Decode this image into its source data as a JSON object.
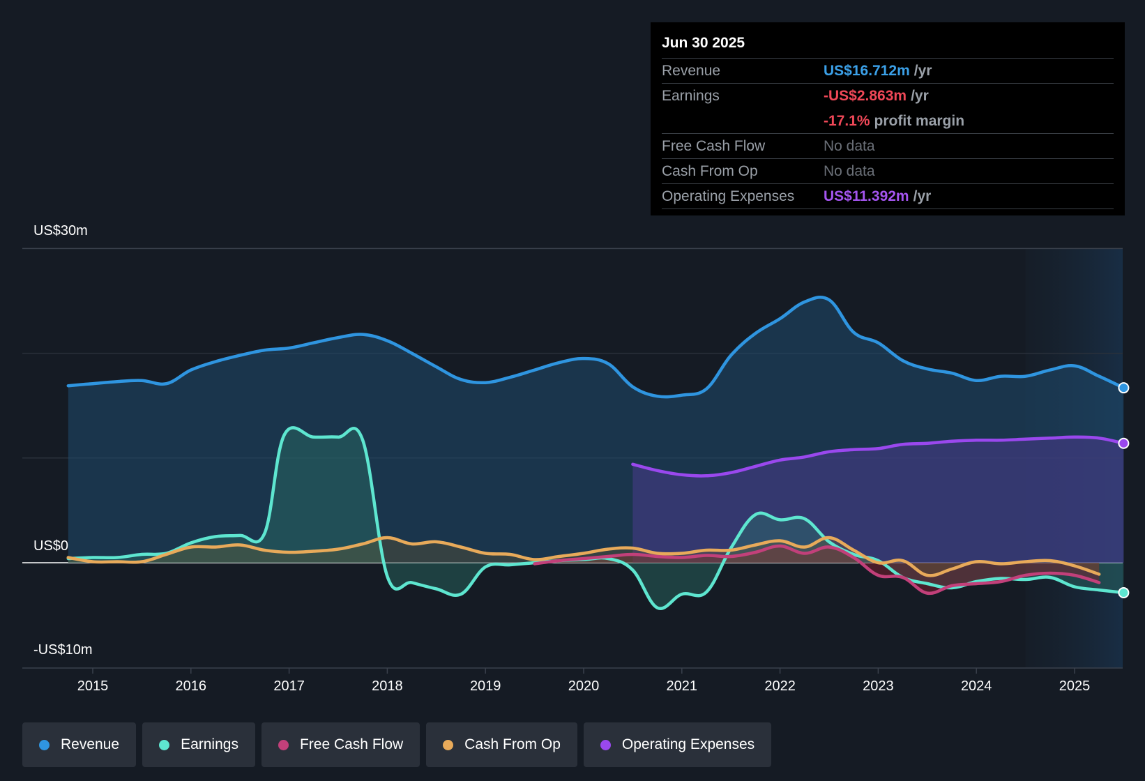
{
  "tooltip": {
    "date": "Jun 30 2025",
    "rows": [
      {
        "label": "Revenue",
        "value": "US$16.712m",
        "unit": "/yr",
        "color": "#3ba0e8"
      },
      {
        "label": "Earnings",
        "value": "-US$2.863m",
        "unit": "/yr",
        "color": "#f04858"
      },
      {
        "label": "",
        "value": "-17.1%",
        "unit": "profit margin",
        "color": "#f04858"
      },
      {
        "label": "Free Cash Flow",
        "value": "No data",
        "unit": "",
        "color": "#6b7078"
      },
      {
        "label": "Cash From Op",
        "value": "No data",
        "unit": "",
        "color": "#6b7078"
      },
      {
        "label": "Operating Expenses",
        "value": "US$11.392m",
        "unit": "/yr",
        "color": "#a555f0"
      }
    ]
  },
  "legend": [
    {
      "label": "Revenue",
      "color": "#2f95e0"
    },
    {
      "label": "Earnings",
      "color": "#5ee6d0"
    },
    {
      "label": "Free Cash Flow",
      "color": "#c2407a"
    },
    {
      "label": "Cash From Op",
      "color": "#e8aa5a"
    },
    {
      "label": "Operating Expenses",
      "color": "#9a48ee"
    }
  ],
  "chart_data": {
    "type": "area",
    "y_labels": {
      "top": "US$30m",
      "zero": "US$0",
      "bottom": "-US$10m"
    },
    "ylim": [
      -10,
      30
    ],
    "xlim": [
      2014.7,
      2025.5
    ],
    "x_ticks": [
      2015,
      2016,
      2017,
      2018,
      2019,
      2020,
      2021,
      2022,
      2023,
      2024,
      2025
    ],
    "forecast_start": 2024.5,
    "series": [
      {
        "name": "Revenue",
        "color": "#2f95e0",
        "fill": true,
        "end_marker": true,
        "points": [
          [
            2014.75,
            16.9
          ],
          [
            2015.0,
            17.1
          ],
          [
            2015.25,
            17.3
          ],
          [
            2015.5,
            17.4
          ],
          [
            2015.75,
            17.1
          ],
          [
            2016.0,
            18.4
          ],
          [
            2016.25,
            19.2
          ],
          [
            2016.5,
            19.8
          ],
          [
            2016.75,
            20.3
          ],
          [
            2017.0,
            20.5
          ],
          [
            2017.25,
            21.0
          ],
          [
            2017.5,
            21.5
          ],
          [
            2017.75,
            21.8
          ],
          [
            2018.0,
            21.2
          ],
          [
            2018.25,
            20.0
          ],
          [
            2018.5,
            18.7
          ],
          [
            2018.75,
            17.5
          ],
          [
            2019.0,
            17.2
          ],
          [
            2019.25,
            17.7
          ],
          [
            2019.5,
            18.4
          ],
          [
            2019.75,
            19.1
          ],
          [
            2020.0,
            19.5
          ],
          [
            2020.25,
            19.0
          ],
          [
            2020.5,
            16.8
          ],
          [
            2020.75,
            15.9
          ],
          [
            2021.0,
            16.0
          ],
          [
            2021.25,
            16.6
          ],
          [
            2021.5,
            19.8
          ],
          [
            2021.75,
            21.9
          ],
          [
            2022.0,
            23.3
          ],
          [
            2022.25,
            24.9
          ],
          [
            2022.5,
            25.1
          ],
          [
            2022.75,
            22.0
          ],
          [
            2023.0,
            21.0
          ],
          [
            2023.25,
            19.3
          ],
          [
            2023.5,
            18.5
          ],
          [
            2023.75,
            18.1
          ],
          [
            2024.0,
            17.4
          ],
          [
            2024.25,
            17.8
          ],
          [
            2024.5,
            17.8
          ],
          [
            2024.75,
            18.4
          ],
          [
            2025.0,
            18.8
          ],
          [
            2025.25,
            17.8
          ],
          [
            2025.5,
            16.7
          ]
        ]
      },
      {
        "name": "Operating Expenses",
        "color": "#9a48ee",
        "fill": true,
        "end_marker": true,
        "points": [
          [
            2020.5,
            9.4
          ],
          [
            2020.75,
            8.8
          ],
          [
            2021.0,
            8.4
          ],
          [
            2021.25,
            8.3
          ],
          [
            2021.5,
            8.6
          ],
          [
            2021.75,
            9.2
          ],
          [
            2022.0,
            9.8
          ],
          [
            2022.25,
            10.1
          ],
          [
            2022.5,
            10.6
          ],
          [
            2022.75,
            10.8
          ],
          [
            2023.0,
            10.9
          ],
          [
            2023.25,
            11.3
          ],
          [
            2023.5,
            11.4
          ],
          [
            2023.75,
            11.6
          ],
          [
            2024.0,
            11.7
          ],
          [
            2024.25,
            11.7
          ],
          [
            2024.5,
            11.8
          ],
          [
            2024.75,
            11.9
          ],
          [
            2025.0,
            12.0
          ],
          [
            2025.25,
            11.9
          ],
          [
            2025.5,
            11.4
          ]
        ]
      },
      {
        "name": "Earnings",
        "color": "#5ee6d0",
        "fill": true,
        "end_marker": true,
        "points": [
          [
            2014.75,
            0.4
          ],
          [
            2015.0,
            0.5
          ],
          [
            2015.25,
            0.5
          ],
          [
            2015.5,
            0.8
          ],
          [
            2015.75,
            0.9
          ],
          [
            2016.0,
            1.9
          ],
          [
            2016.25,
            2.5
          ],
          [
            2016.5,
            2.6
          ],
          [
            2016.75,
            2.8
          ],
          [
            2016.95,
            12.2
          ],
          [
            2017.25,
            12.0
          ],
          [
            2017.5,
            12.0
          ],
          [
            2017.75,
            11.7
          ],
          [
            2018.0,
            -1.3
          ],
          [
            2018.25,
            -1.9
          ],
          [
            2018.5,
            -2.5
          ],
          [
            2018.75,
            -3.0
          ],
          [
            2019.0,
            -0.4
          ],
          [
            2019.25,
            -0.2
          ],
          [
            2019.5,
            0.0
          ],
          [
            2019.75,
            0.2
          ],
          [
            2020.0,
            0.3
          ],
          [
            2020.25,
            0.4
          ],
          [
            2020.5,
            -0.7
          ],
          [
            2020.75,
            -4.3
          ],
          [
            2021.0,
            -3.0
          ],
          [
            2021.25,
            -2.8
          ],
          [
            2021.5,
            1.4
          ],
          [
            2021.75,
            4.6
          ],
          [
            2022.0,
            4.1
          ],
          [
            2022.25,
            4.2
          ],
          [
            2022.5,
            2.0
          ],
          [
            2022.75,
            0.8
          ],
          [
            2023.0,
            0.2
          ],
          [
            2023.25,
            -1.4
          ],
          [
            2023.5,
            -2.0
          ],
          [
            2023.75,
            -2.4
          ],
          [
            2024.0,
            -1.8
          ],
          [
            2024.25,
            -1.5
          ],
          [
            2024.5,
            -1.6
          ],
          [
            2024.75,
            -1.4
          ],
          [
            2025.0,
            -2.3
          ],
          [
            2025.25,
            -2.6
          ],
          [
            2025.5,
            -2.86
          ]
        ]
      },
      {
        "name": "Free Cash Flow",
        "color": "#c2407a",
        "fill": true,
        "end_marker": false,
        "points": [
          [
            2019.5,
            -0.1
          ],
          [
            2019.75,
            0.2
          ],
          [
            2020.0,
            0.4
          ],
          [
            2020.25,
            0.6
          ],
          [
            2020.5,
            0.8
          ],
          [
            2020.75,
            0.6
          ],
          [
            2021.0,
            0.5
          ],
          [
            2021.25,
            0.7
          ],
          [
            2021.5,
            0.6
          ],
          [
            2021.75,
            1.0
          ],
          [
            2022.0,
            1.6
          ],
          [
            2022.25,
            0.9
          ],
          [
            2022.5,
            1.5
          ],
          [
            2022.75,
            0.5
          ],
          [
            2023.0,
            -1.2
          ],
          [
            2023.25,
            -1.4
          ],
          [
            2023.5,
            -2.9
          ],
          [
            2023.75,
            -2.2
          ],
          [
            2024.0,
            -2.0
          ],
          [
            2024.25,
            -1.8
          ],
          [
            2024.5,
            -1.2
          ],
          [
            2024.75,
            -1.0
          ],
          [
            2025.0,
            -1.2
          ],
          [
            2025.25,
            -1.9
          ]
        ]
      },
      {
        "name": "Cash From Op",
        "color": "#e8aa5a",
        "fill": true,
        "end_marker": false,
        "points": [
          [
            2014.75,
            0.5
          ],
          [
            2015.0,
            0.1
          ],
          [
            2015.25,
            0.1
          ],
          [
            2015.5,
            0.1
          ],
          [
            2015.75,
            0.8
          ],
          [
            2016.0,
            1.5
          ],
          [
            2016.25,
            1.5
          ],
          [
            2016.5,
            1.7
          ],
          [
            2016.75,
            1.2
          ],
          [
            2017.0,
            1.0
          ],
          [
            2017.25,
            1.1
          ],
          [
            2017.5,
            1.3
          ],
          [
            2017.75,
            1.8
          ],
          [
            2018.0,
            2.4
          ],
          [
            2018.25,
            1.8
          ],
          [
            2018.5,
            2.0
          ],
          [
            2018.75,
            1.5
          ],
          [
            2019.0,
            0.9
          ],
          [
            2019.25,
            0.8
          ],
          [
            2019.5,
            0.3
          ],
          [
            2019.75,
            0.6
          ],
          [
            2020.0,
            0.9
          ],
          [
            2020.25,
            1.3
          ],
          [
            2020.5,
            1.4
          ],
          [
            2020.75,
            0.9
          ],
          [
            2021.0,
            0.9
          ],
          [
            2021.25,
            1.2
          ],
          [
            2021.5,
            1.2
          ],
          [
            2021.75,
            1.7
          ],
          [
            2022.0,
            2.1
          ],
          [
            2022.25,
            1.5
          ],
          [
            2022.5,
            2.4
          ],
          [
            2022.75,
            1.2
          ],
          [
            2023.0,
            0.0
          ],
          [
            2023.25,
            0.2
          ],
          [
            2023.5,
            -1.2
          ],
          [
            2023.75,
            -0.6
          ],
          [
            2024.0,
            0.1
          ],
          [
            2024.25,
            -0.1
          ],
          [
            2024.5,
            0.1
          ],
          [
            2024.75,
            0.2
          ],
          [
            2025.0,
            -0.3
          ],
          [
            2025.25,
            -1.1
          ]
        ]
      }
    ]
  }
}
